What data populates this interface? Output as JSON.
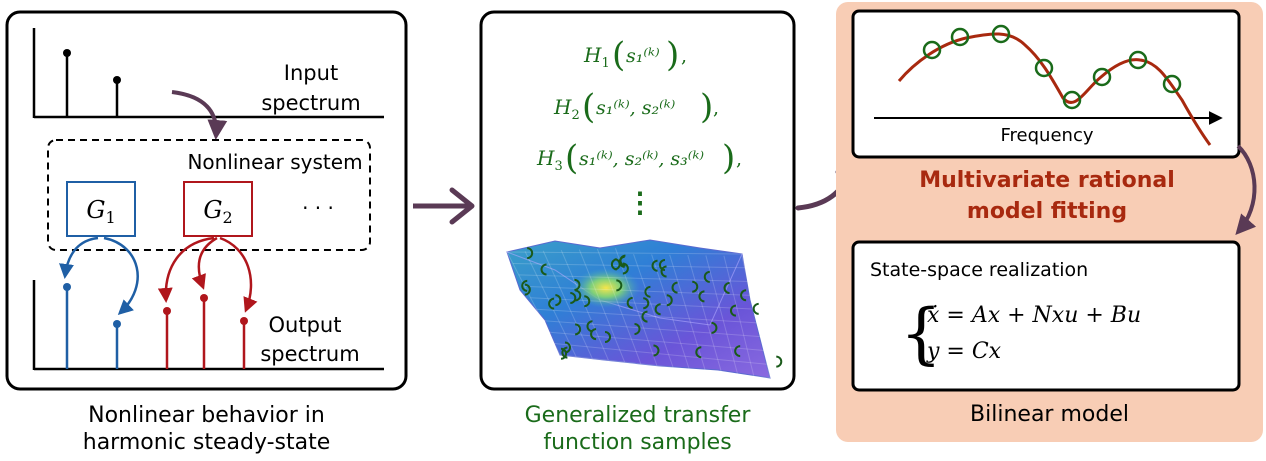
{
  "panel1": {
    "input_label_line1": "Input",
    "input_label_line2": "spectrum",
    "system_label": "Nonlinear system",
    "block1": {
      "base": "G",
      "sub": "1"
    },
    "block2": {
      "base": "G",
      "sub": "2"
    },
    "dots": "· · ·",
    "output_label_line1": "Output",
    "output_label_line2": "spectrum",
    "caption_line1": "Nonlinear behavior in",
    "caption_line2": "harmonic steady-state"
  },
  "panel2": {
    "h1": {
      "base": "H",
      "sub": "1",
      "args": "s₁⁽ᵏ⁾",
      "trail": "),"
    },
    "h2": {
      "base": "H",
      "sub": "2",
      "args": "s₁⁽ᵏ⁾, s₂⁽ᵏ⁾",
      "trail": "),"
    },
    "h3": {
      "base": "H",
      "sub": "3",
      "args": "s₁⁽ᵏ⁾, s₂⁽ᵏ⁾, s₃⁽ᵏ⁾",
      "trail": "),"
    },
    "vdots": "⋮",
    "caption_line1": "Generalized transfer",
    "caption_line2": "function samples"
  },
  "panel3": {
    "axis_label": "Frequency",
    "fit_title_line1": "Multivariate rational",
    "fit_title_line2": "model fitting",
    "ss_title": "State-space realization",
    "eq1": "ẋ = Ax + Nxu + Bu",
    "eq2": "y = Cx",
    "caption": "Bilinear model"
  },
  "colors": {
    "black": "#000000",
    "arrow": "#5a3a55",
    "blue": "#1f5fa5",
    "red": "#b0161c",
    "green": "#1a6b1a",
    "curve": "#a8290f",
    "fit_title": "#a8290f",
    "panel_bg": "#f8cdb5"
  }
}
